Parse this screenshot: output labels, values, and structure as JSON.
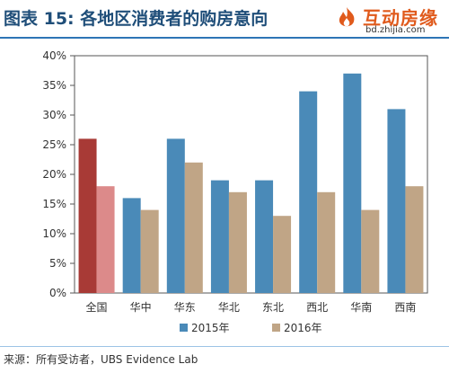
{
  "header": {
    "title": "图表 15: 各地区消费者的购房意向"
  },
  "logo": {
    "name": "互动房缘",
    "url": "bd.zhijia.com"
  },
  "footer": {
    "source": "来源：所有受访者，UBS Evidence Lab"
  },
  "colors": {
    "series_2015": "#4a8ab8",
    "series_2016": "#c0a586",
    "highlight_2015": "#a83a36",
    "highlight_2016": "#dc8a8a",
    "title": "#1f4e79",
    "logo": "#e05a1c"
  },
  "chart_data": {
    "type": "bar",
    "categories": [
      "全国",
      "华中",
      "华东",
      "华北",
      "东北",
      "西北",
      "华南",
      "西南"
    ],
    "series": [
      {
        "name": "2015年",
        "values": [
          26,
          16,
          26,
          19,
          19,
          34,
          37,
          31
        ]
      },
      {
        "name": "2016年",
        "values": [
          18,
          14,
          22,
          17,
          13,
          17,
          14,
          18
        ]
      }
    ],
    "y_ticks": [
      "0%",
      "5%",
      "10%",
      "15%",
      "20%",
      "25%",
      "30%",
      "35%",
      "40%"
    ],
    "ylim": [
      0,
      40
    ],
    "y_step": 5,
    "highlight_category": "全国",
    "grid": false,
    "legend_position": "bottom-center"
  }
}
